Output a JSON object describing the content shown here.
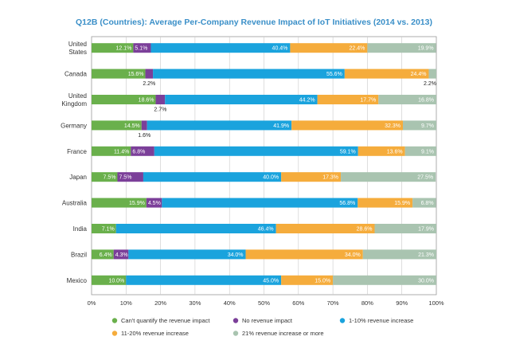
{
  "chart_data": {
    "type": "bar",
    "orientation": "horizontal",
    "stacked": true,
    "title": "Q12B (Countries): Average Per-Company Revenue Impact of IoT Initiatives (2014 vs. 2013)",
    "categories": [
      [
        "United",
        "States"
      ],
      [
        "Canada"
      ],
      [
        "United",
        "Kingdom"
      ],
      [
        "Germany"
      ],
      [
        "France"
      ],
      [
        "Japan"
      ],
      [
        "Australia"
      ],
      [
        "India"
      ],
      [
        "Brazil"
      ],
      [
        "Mexico"
      ]
    ],
    "series": [
      {
        "name": "Can't quantify the revenue impact",
        "color": "#6ab04c",
        "values": [
          12.1,
          15.6,
          18.6,
          14.5,
          11.4,
          7.5,
          15.9,
          7.1,
          6.4,
          10.0
        ],
        "labels": [
          "12.1%",
          "15.6%",
          "18.6%",
          "14.5%",
          "11.4%",
          "7.5%",
          "15.9%",
          "7.1%",
          "6.4%",
          "10.0%"
        ]
      },
      {
        "name": "No revenue impact",
        "color": "#7b3f99",
        "values": [
          5.1,
          2.2,
          2.7,
          1.6,
          6.8,
          7.5,
          4.5,
          0,
          4.3,
          0
        ],
        "labels": [
          "5.1%",
          "2.2%",
          "2.7%",
          "1.6%",
          "6.8%",
          "7.5%",
          "4.5%",
          "",
          "4.3%",
          ""
        ]
      },
      {
        "name": "1-10% revenue increase",
        "color": "#1aa3dd",
        "values": [
          40.4,
          55.6,
          44.2,
          41.9,
          59.1,
          40.0,
          56.8,
          46.4,
          34.0,
          45.0
        ],
        "labels": [
          "40.4%",
          "55.6%",
          "44.2%",
          "41.9%",
          "59.1%",
          "40.0%",
          "56.8%",
          "46.4%",
          "34.0%",
          "45.0%"
        ]
      },
      {
        "name": "11-20% revenue increase",
        "color": "#f5ac3c",
        "values": [
          22.4,
          24.4,
          17.7,
          32.3,
          13.6,
          17.3,
          15.9,
          28.6,
          34.0,
          15.0
        ],
        "labels": [
          "22.4%",
          "24.4%",
          "17.7%",
          "32.3%",
          "13.6%",
          "17.3%",
          "15.9%",
          "28.6%",
          "34.0%",
          "15.0%"
        ]
      },
      {
        "name": "21% revenue increase or more",
        "color": "#a9c4b0",
        "values": [
          19.9,
          2.2,
          16.8,
          9.7,
          9.1,
          27.5,
          6.8,
          17.9,
          21.3,
          30.0
        ],
        "labels": [
          "19.9%",
          "2.2%",
          "16.8%",
          "9.7%",
          "9.1%",
          "27.5%",
          "6.8%",
          "17.9%",
          "21.3%",
          "30.0%"
        ]
      }
    ],
    "external_labels": [
      {
        "row": 1,
        "series": 1,
        "text": "2.2%"
      },
      {
        "row": 1,
        "series": 4,
        "text": "2.2%"
      },
      {
        "row": 2,
        "series": 1,
        "text": "2.7%"
      },
      {
        "row": 3,
        "series": 1,
        "text": "1.6%"
      }
    ],
    "x_ticks": [
      0,
      10,
      20,
      30,
      40,
      50,
      60,
      70,
      80,
      90,
      100
    ],
    "x_tick_labels": [
      "0%",
      "10%",
      "20%",
      "30%",
      "40%",
      "50%",
      "60%",
      "70%",
      "80%",
      "90%",
      "100%"
    ],
    "xlim": [
      0,
      100
    ],
    "xlabel": "",
    "ylabel": "",
    "grid": true,
    "legend_position": "bottom"
  }
}
